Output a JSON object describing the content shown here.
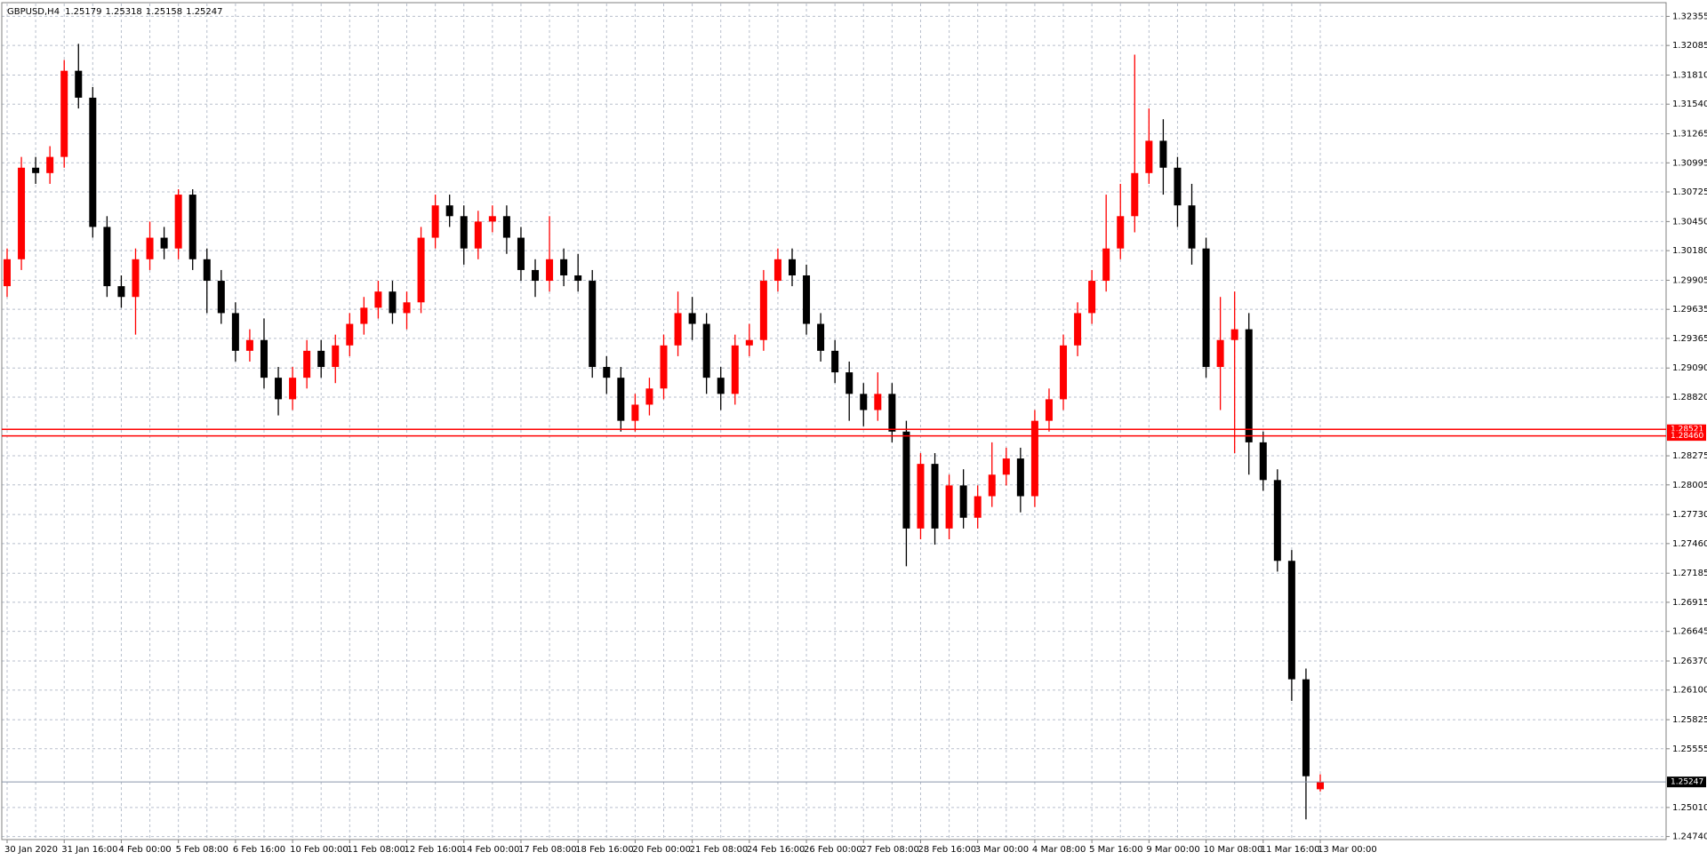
{
  "chart_data": {
    "type": "candlestick",
    "symbol": "GBPUSD,H4",
    "categories": [
      "30 Jan 2020",
      null,
      null,
      null,
      "31 Jan 16:00",
      null,
      null,
      null,
      "4 Feb 00:00",
      null,
      null,
      null,
      "5 Feb 08:00",
      null,
      null,
      null,
      "6 Feb 16:00",
      null,
      null,
      null,
      "10 Feb 00:00",
      null,
      null,
      null,
      "11 Feb 08:00",
      null,
      null,
      null,
      "12 Feb 16:00",
      null,
      null,
      null,
      "14 Feb 00:00",
      null,
      null,
      null,
      "17 Feb 08:00",
      null,
      null,
      null,
      "18 Feb 16:00",
      null,
      null,
      null,
      "20 Feb 00:00",
      null,
      null,
      null,
      "21 Feb 08:00",
      null,
      null,
      null,
      "24 Feb 16:00",
      null,
      null,
      null,
      "26 Feb 00:00",
      null,
      null,
      null,
      "27 Feb 08:00",
      null,
      null,
      null,
      "28 Feb 16:00",
      null,
      null,
      null,
      "3 Mar 00:00",
      null,
      null,
      null,
      "4 Mar 08:00",
      null,
      null,
      null,
      "5 Mar 16:00",
      null,
      null,
      null,
      "9 Mar 00:00",
      null,
      null,
      null,
      "10 Mar 08:00",
      null,
      null,
      null,
      "11 Mar 16:00",
      null,
      null,
      null,
      "13 Mar 00:00"
    ],
    "open": [
      1.2985,
      1.301,
      1.3095,
      1.309,
      1.3105,
      1.3185,
      1.316,
      1.304,
      1.2985,
      1.2975,
      1.301,
      1.303,
      1.302,
      1.307,
      1.301,
      1.299,
      1.296,
      1.2925,
      1.2935,
      1.29,
      1.288,
      1.29,
      1.2925,
      1.291,
      1.293,
      1.295,
      1.2965,
      1.298,
      1.296,
      1.297,
      1.303,
      1.306,
      1.305,
      1.302,
      1.3045,
      1.305,
      1.303,
      1.3,
      1.299,
      1.301,
      1.2995,
      1.299,
      1.291,
      1.29,
      1.286,
      1.2875,
      1.289,
      1.293,
      1.296,
      1.295,
      1.29,
      1.2885,
      1.293,
      1.2935,
      1.299,
      1.301,
      1.2995,
      1.295,
      1.2925,
      1.2905,
      1.2885,
      1.287,
      1.2885,
      1.285,
      1.276,
      1.282,
      1.276,
      1.28,
      1.277,
      1.279,
      1.281,
      1.2825,
      1.279,
      1.286,
      1.288,
      1.293,
      1.296,
      1.299,
      1.302,
      1.305,
      1.309,
      1.312,
      1.3095,
      1.306,
      1.302,
      1.291,
      1.2935,
      1.2945,
      1.284,
      1.2805,
      1.273,
      1.262,
      1.25179
    ],
    "high": [
      1.302,
      1.3105,
      1.3105,
      1.3115,
      1.3195,
      1.321,
      1.317,
      1.305,
      1.2995,
      1.302,
      1.3045,
      1.304,
      1.3075,
      1.3075,
      1.302,
      1.3,
      1.297,
      1.2945,
      1.2955,
      1.291,
      1.291,
      1.2935,
      1.2935,
      1.294,
      1.296,
      1.2975,
      1.299,
      1.299,
      1.298,
      1.304,
      1.307,
      1.307,
      1.306,
      1.3055,
      1.306,
      1.306,
      1.304,
      1.301,
      1.305,
      1.302,
      1.3015,
      1.3,
      1.292,
      1.291,
      1.2885,
      1.29,
      1.294,
      1.298,
      1.2975,
      1.296,
      1.291,
      1.294,
      1.295,
      1.3,
      1.302,
      1.302,
      1.3005,
      1.296,
      1.2935,
      1.2915,
      1.2895,
      1.2905,
      1.2895,
      1.286,
      1.283,
      1.283,
      1.281,
      1.2815,
      1.28,
      1.284,
      1.2835,
      1.2835,
      1.287,
      1.289,
      1.294,
      1.297,
      1.3,
      1.307,
      1.308,
      1.32,
      1.315,
      1.314,
      1.3105,
      1.308,
      1.303,
      1.2975,
      1.298,
      1.296,
      1.285,
      1.2815,
      1.274,
      1.263,
      1.25318
    ],
    "low": [
      1.2975,
      1.3,
      1.308,
      1.308,
      1.3095,
      1.315,
      1.303,
      1.2975,
      1.2965,
      1.294,
      1.3,
      1.301,
      1.301,
      1.3,
      1.296,
      1.295,
      1.2915,
      1.2915,
      1.289,
      1.2865,
      1.287,
      1.289,
      1.29,
      1.2895,
      1.292,
      1.294,
      1.2955,
      1.295,
      1.2945,
      1.296,
      1.302,
      1.304,
      1.3005,
      1.301,
      1.3035,
      1.3015,
      1.299,
      1.2975,
      1.298,
      1.2985,
      1.298,
      1.29,
      1.2885,
      1.285,
      1.285,
      1.2865,
      1.288,
      1.292,
      1.2935,
      1.2885,
      1.287,
      1.2875,
      1.292,
      1.2925,
      1.298,
      1.2985,
      1.294,
      1.2915,
      1.2895,
      1.286,
      1.2855,
      1.286,
      1.284,
      1.2725,
      1.275,
      1.2745,
      1.275,
      1.276,
      1.276,
      1.278,
      1.28,
      1.2775,
      1.278,
      1.285,
      1.287,
      1.292,
      1.295,
      1.298,
      1.301,
      1.3035,
      1.308,
      1.307,
      1.304,
      1.3005,
      1.29,
      1.287,
      1.283,
      1.281,
      1.2795,
      1.272,
      1.26,
      1.249,
      1.25158
    ],
    "close": [
      1.301,
      1.3095,
      1.309,
      1.3105,
      1.3185,
      1.316,
      1.304,
      1.2985,
      1.2975,
      1.301,
      1.303,
      1.302,
      1.307,
      1.301,
      1.299,
      1.296,
      1.2925,
      1.2935,
      1.29,
      1.288,
      1.29,
      1.2925,
      1.291,
      1.293,
      1.295,
      1.2965,
      1.298,
      1.296,
      1.297,
      1.303,
      1.306,
      1.305,
      1.302,
      1.3045,
      1.305,
      1.303,
      1.3,
      1.299,
      1.301,
      1.2995,
      1.299,
      1.291,
      1.29,
      1.286,
      1.2875,
      1.289,
      1.293,
      1.296,
      1.295,
      1.29,
      1.2885,
      1.293,
      1.2935,
      1.299,
      1.301,
      1.2995,
      1.295,
      1.2925,
      1.2905,
      1.2885,
      1.287,
      1.2885,
      1.285,
      1.276,
      1.282,
      1.276,
      1.28,
      1.277,
      1.279,
      1.281,
      1.2825,
      1.279,
      1.286,
      1.288,
      1.293,
      1.296,
      1.299,
      1.302,
      1.305,
      1.309,
      1.312,
      1.3095,
      1.306,
      1.302,
      1.291,
      1.2935,
      1.2945,
      1.284,
      1.2805,
      1.273,
      1.262,
      1.253,
      1.25247
    ],
    "up_color": "#ff0000",
    "down_color": "#000000",
    "ylim": [
      1.24712,
      1.32474
    ],
    "yticks": [
      1.32355,
      1.32085,
      {
        "value": 1.3181,
        "label": "1.31810"
      },
      {
        "value": 1.3154,
        "label": "1.31540"
      },
      1.31265,
      1.30995,
      1.30725,
      {
        "value": 1.3045,
        "label": "1.30450"
      },
      {
        "value": 1.3018,
        "label": "1.30180"
      },
      1.29905,
      1.29635,
      1.29365,
      {
        "value": 1.2909,
        "label": "1.29090"
      },
      {
        "value": 1.2882,
        "label": "1.28820"
      },
      1.28275,
      1.28005,
      {
        "value": 1.2773,
        "label": "1.27730"
      },
      {
        "value": 1.2746,
        "label": "1.27460"
      },
      1.27185,
      1.26915,
      1.26645,
      {
        "value": 1.2637,
        "label": "1.26370"
      },
      {
        "value": 1.261,
        "label": "1.26100"
      },
      1.25825,
      1.25555,
      {
        "value": 1.2501,
        "label": "1.25010"
      },
      {
        "value": 1.2474,
        "label": "1.24740"
      }
    ],
    "grid": true,
    "hlines": [
      {
        "value": 1.28521,
        "color": "#ff0000"
      },
      {
        "value": 1.2846,
        "label": "1.28460",
        "color": "#ff0000"
      }
    ],
    "last_price_color": "#000000"
  }
}
